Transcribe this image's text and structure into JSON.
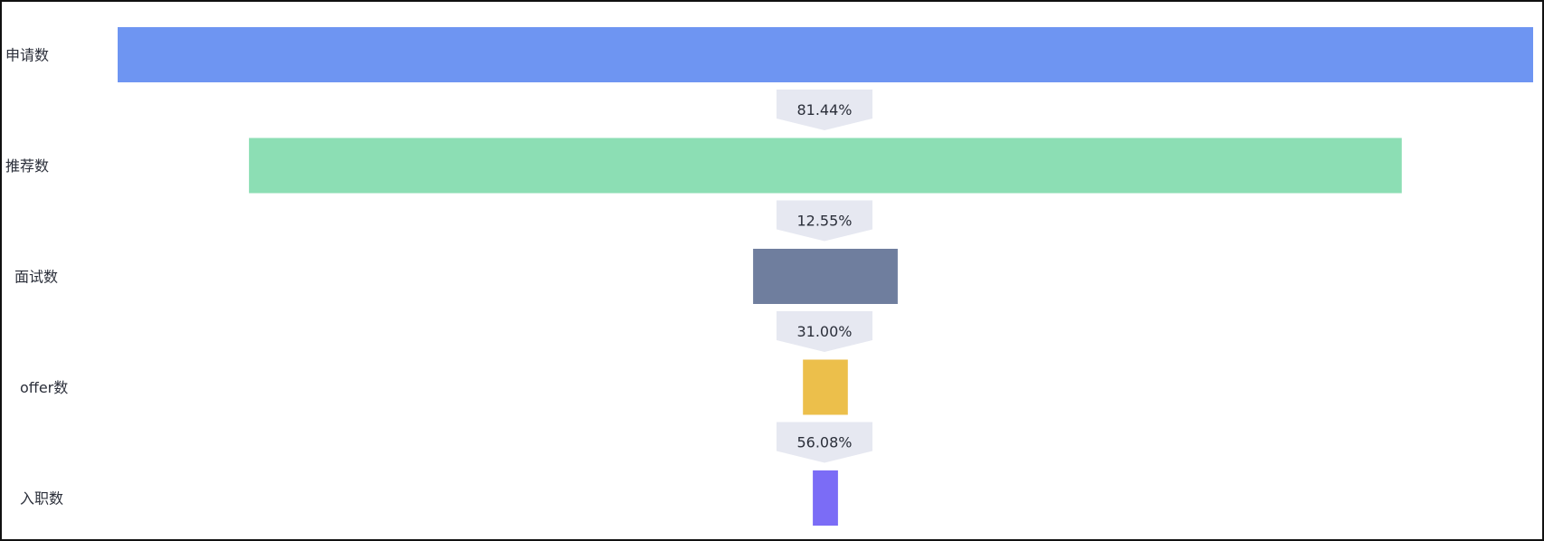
{
  "chart_data": {
    "type": "funnel",
    "stages": [
      {
        "name": "申请数",
        "value": 100,
        "color": "#6e95f2"
      },
      {
        "name": "推荐数",
        "value": 81.44,
        "color": "#8cdeb4"
      },
      {
        "name": "面试数",
        "value": 10.22,
        "color": "#6f7e9e"
      },
      {
        "name": "offer数",
        "value": 3.17,
        "color": "#ecbf4b"
      },
      {
        "name": "入职数",
        "value": 1.78,
        "color": "#7b6cf6"
      }
    ],
    "conversion_rates": [
      "81.44%",
      "12.55%",
      "31.00%",
      "56.08%"
    ],
    "conversion_badge_color": "#e6e8f1"
  }
}
